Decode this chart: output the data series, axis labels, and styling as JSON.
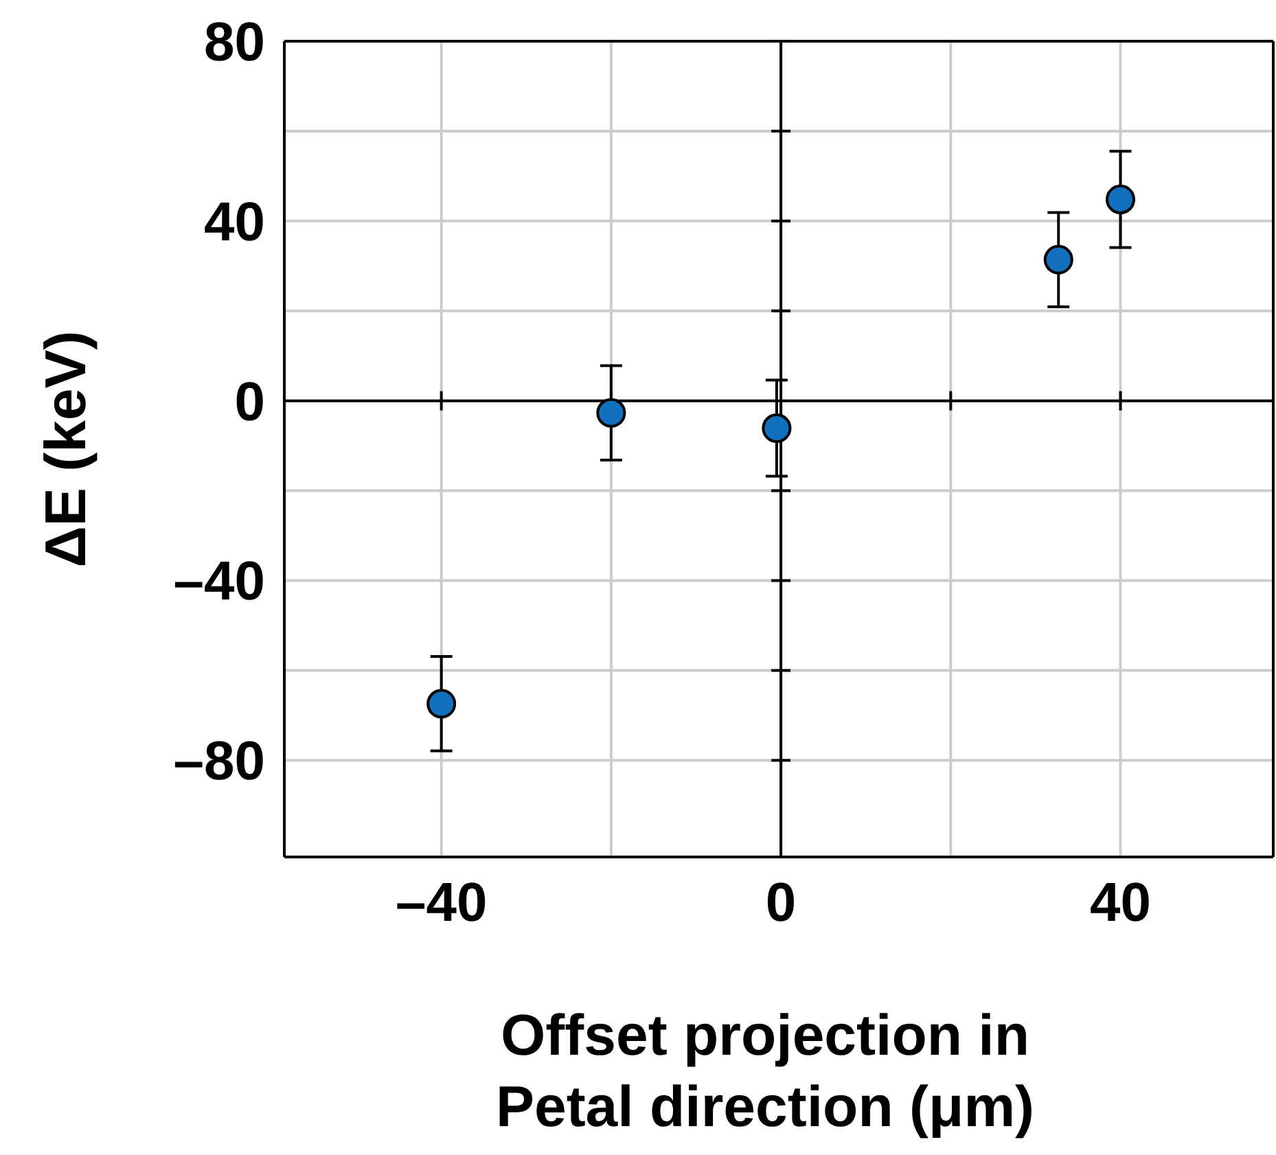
{
  "chart_data": {
    "type": "scatter",
    "xlabel": "Offset projection in\nPetal direction (μm)",
    "ylabel": "ΔE (keV)",
    "x": [
      -40,
      -20,
      -0.5,
      32.7,
      40
    ],
    "values": [
      -67.4,
      -2.7,
      -6.1,
      31.4,
      44.8
    ],
    "errors": [
      10.5,
      10.5,
      10.7,
      10.5,
      10.7
    ],
    "color": "#1171be",
    "marker": "circle",
    "grid": true,
    "xlim": [
      -58.5,
      58
    ],
    "ylim": [
      -101.5,
      80
    ],
    "xticks": [
      {
        "value": -40,
        "label": "–40"
      },
      {
        "value": -20,
        "label": null
      },
      0,
      {
        "value": 20,
        "label": null
      },
      40
    ],
    "yticks": [
      {
        "value": -80,
        "label": "–80"
      },
      {
        "value": -60,
        "label": null
      },
      {
        "value": -40,
        "label": "–40"
      },
      {
        "value": -20,
        "label": null
      },
      0,
      {
        "value": 20,
        "label": null
      },
      40,
      {
        "value": 60,
        "label": null
      },
      80
    ]
  }
}
